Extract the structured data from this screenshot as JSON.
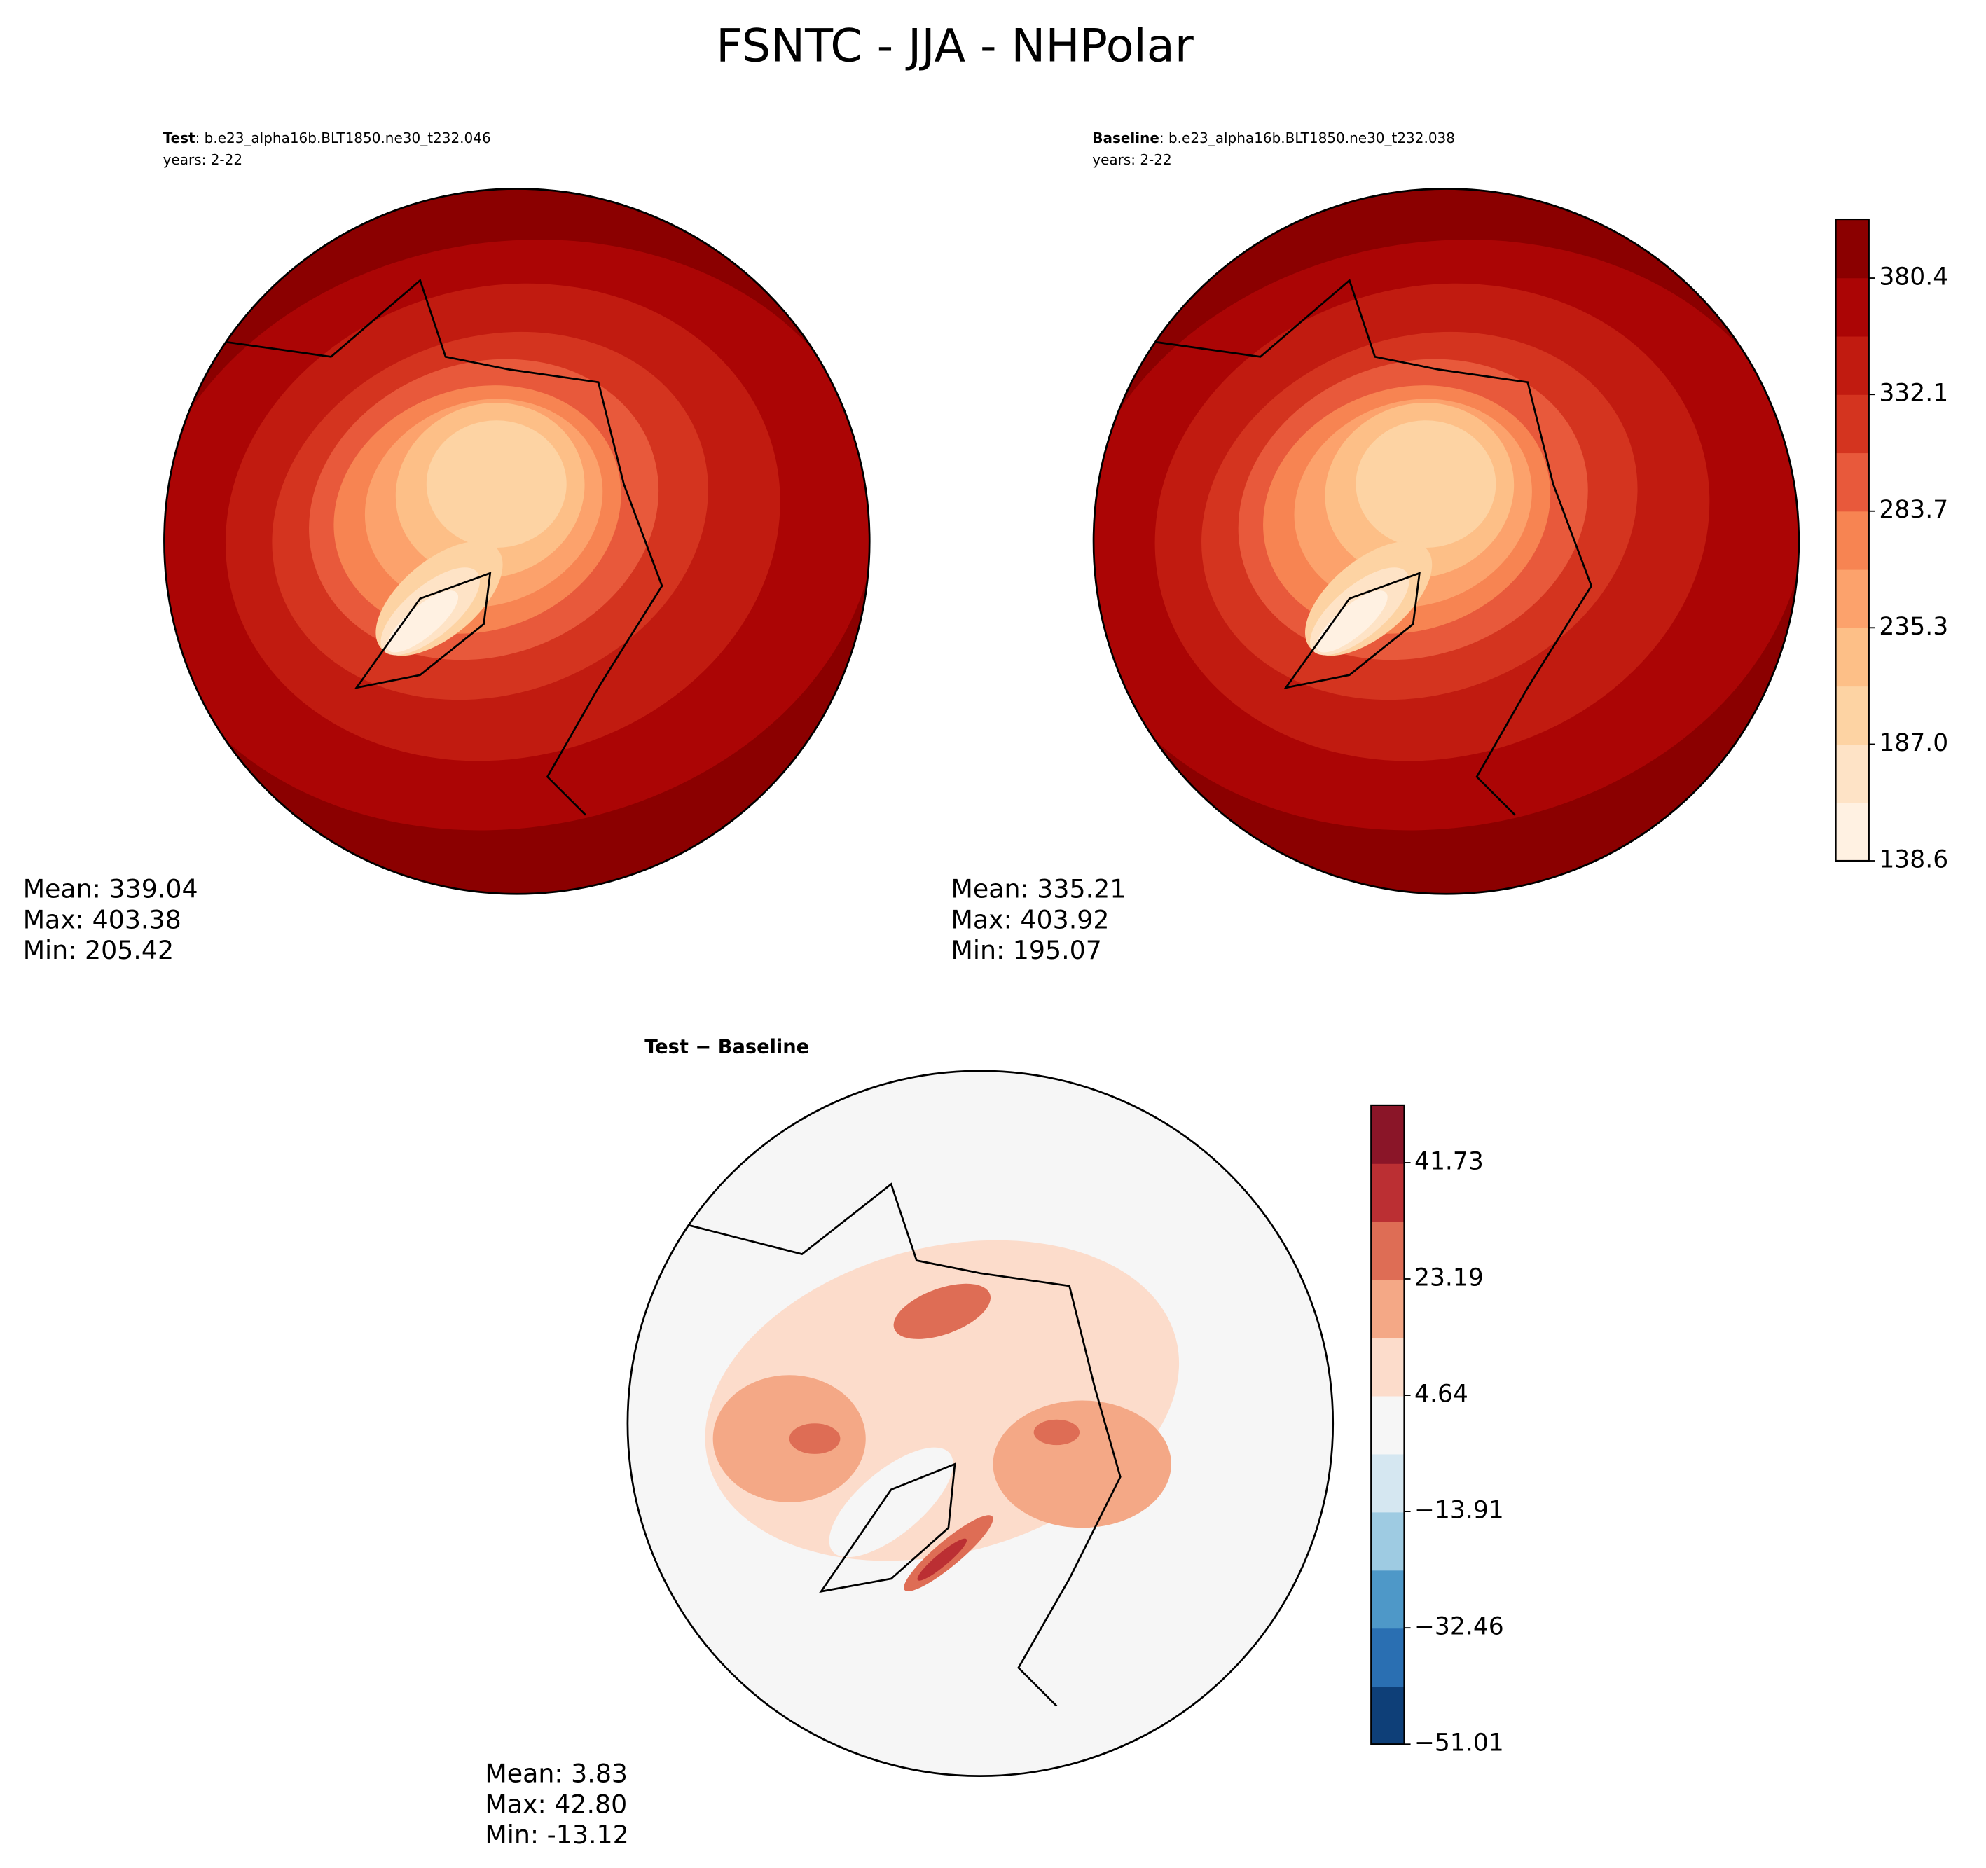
{
  "title": "FSNTC - JJA - NHPolar",
  "panels": [
    {
      "name": "Test",
      "case": ": b.e23_alpha16b.BLT1850.ne30_t232.046",
      "years": "years: 2-22",
      "stats": [
        "Mean: 339.04",
        "Max: 403.38",
        "Min: 205.42"
      ]
    },
    {
      "name": "Baseline",
      "case": ": b.e23_alpha16b.BLT1850.ne30_t232.038",
      "years": "years: 2-22",
      "stats": [
        "Mean: 335.21",
        "Max: 403.92",
        "Min: 195.07"
      ]
    },
    {
      "title": "Test − Baseline",
      "stats": [
        "Mean:  3.83",
        "Max: 42.80",
        "Min: -13.12"
      ]
    }
  ],
  "colorbars": [
    {
      "lim": [
        138.6,
        404.8
      ],
      "ticks": [
        {
          "value": 138.6,
          "label": "138.6"
        },
        {
          "value": 187.0,
          "label": "187.0"
        },
        {
          "value": 235.3,
          "label": "235.3"
        },
        {
          "value": 283.7,
          "label": "283.7"
        },
        {
          "value": 332.1,
          "label": "332.1"
        },
        {
          "value": 380.4,
          "label": "380.4"
        }
      ],
      "colors": [
        "#fff1e2",
        "#fee3c6",
        "#fdd3a3",
        "#fdbf87",
        "#fca26c",
        "#f78452",
        "#e8593b",
        "#d4341f",
        "#c11b10",
        "#ab0505",
        "#8b0000"
      ]
    },
    {
      "lim": [
        -51.01,
        50.9
      ],
      "ticks": [
        {
          "value": -51.01,
          "label": "−51.01"
        },
        {
          "value": -32.46,
          "label": "−32.46"
        },
        {
          "value": -13.91,
          "label": "−13.91"
        },
        4.64,
        23.19,
        41.73
      ],
      "colors": [
        "#0e3f78",
        "#2a6fb2",
        "#4e98c8",
        "#9ecbe2",
        "#d5e7f1",
        "#f6f6f6",
        "#fcdccb",
        "#f4a886",
        "#de6d55",
        "#bb2f33",
        "#8a1528"
      ]
    }
  ]
}
